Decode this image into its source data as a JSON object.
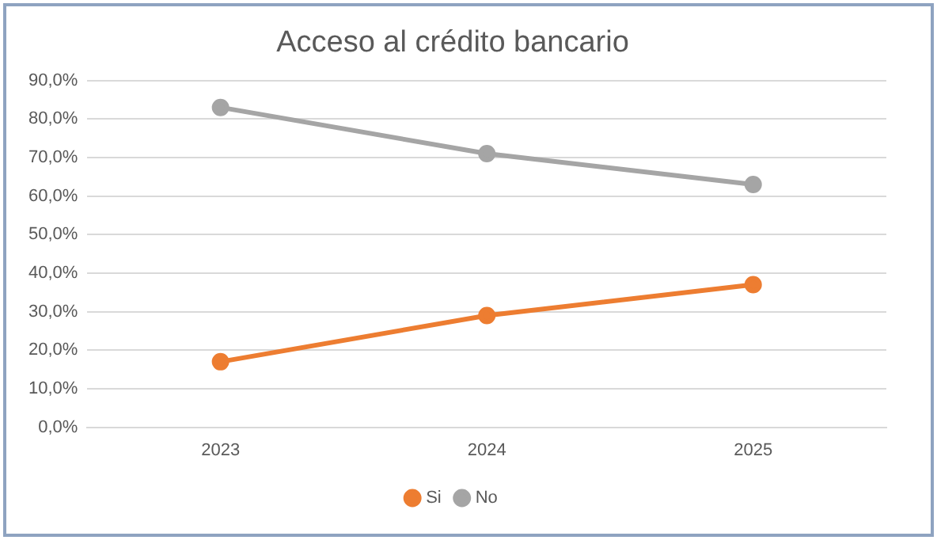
{
  "chart_data": {
    "type": "line",
    "title": "Acceso al crédito bancario",
    "categories": [
      "2023",
      "2024",
      "2025"
    ],
    "series": [
      {
        "name": "Si",
        "color": "#ed7d31",
        "values": [
          17,
          29,
          37
        ]
      },
      {
        "name": "No",
        "color": "#a5a5a5",
        "values": [
          83,
          71,
          63
        ]
      }
    ],
    "ylim": [
      0,
      90
    ],
    "yticks": [
      {
        "value": 0,
        "label": "0,0%"
      },
      {
        "value": 10,
        "label": "10,0%"
      },
      {
        "value": 20,
        "label": "20,0%"
      },
      {
        "value": 30,
        "label": "30,0%"
      },
      {
        "value": 40,
        "label": "40,0%"
      },
      {
        "value": 50,
        "label": "50,0%"
      },
      {
        "value": 60,
        "label": "60,0%"
      },
      {
        "value": 70,
        "label": "70,0%"
      },
      {
        "value": 80,
        "label": "80,0%"
      },
      {
        "value": 90,
        "label": "90,0%"
      }
    ],
    "grid": "y",
    "legend": "bottom",
    "marker": "circle",
    "line_style": "solid"
  }
}
